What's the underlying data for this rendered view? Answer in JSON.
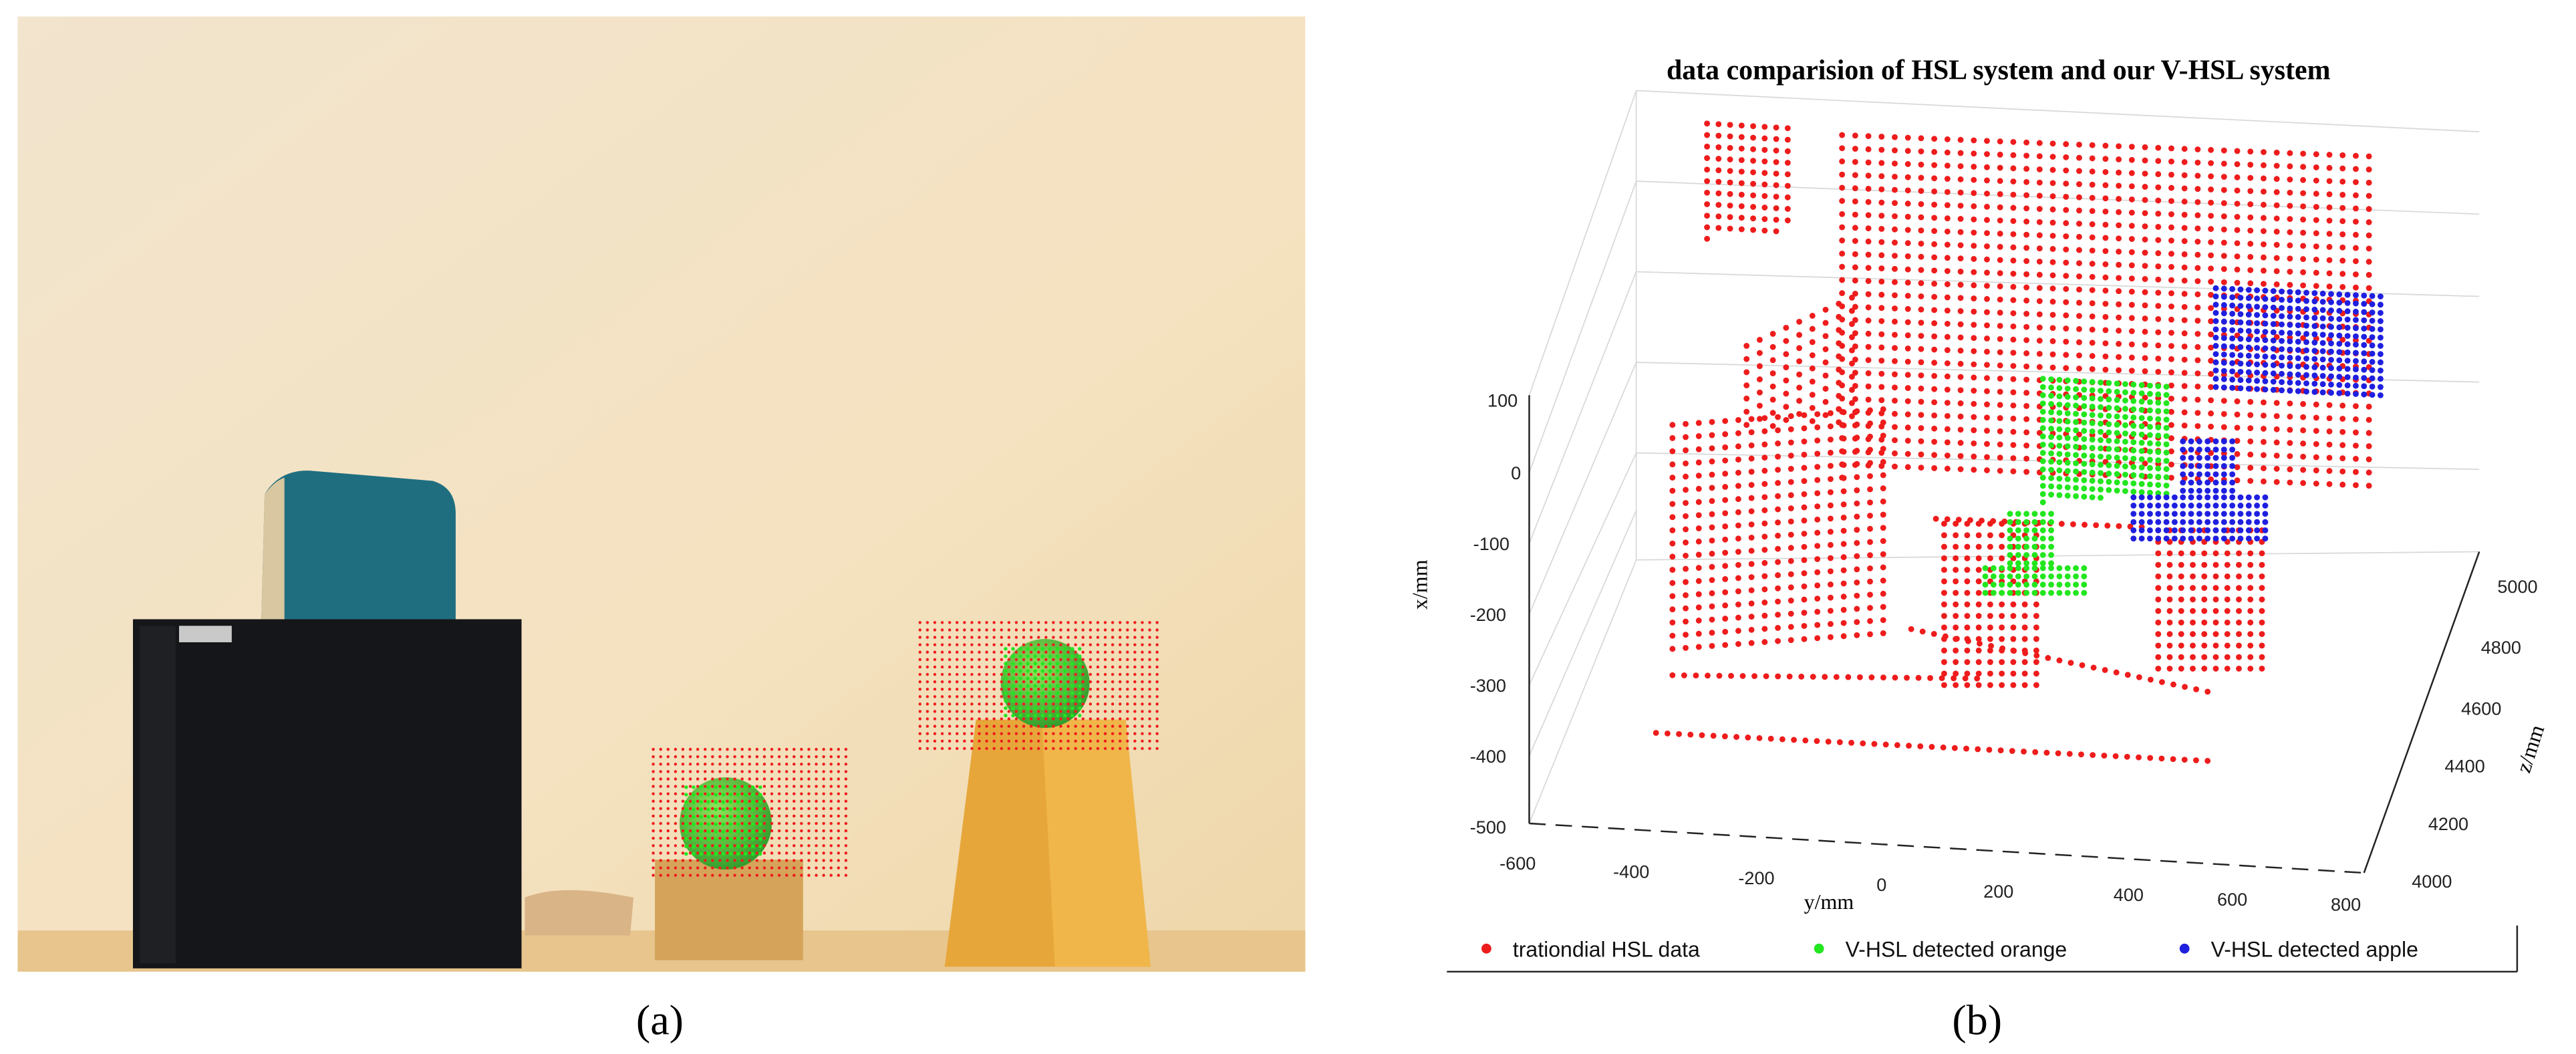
{
  "panels": [
    {
      "label": "(a)"
    },
    {
      "label": "(b)",
      "title": "data comparision of HSL system and our V-HSL system",
      "x_axis": {
        "label": "x/mm",
        "ticks": [
          "100",
          "0",
          "-100",
          "-200",
          "-300",
          "-400",
          "-500"
        ]
      },
      "y_axis": {
        "label": "y/mm",
        "ticks": [
          "-600",
          "-400",
          "-200",
          "0",
          "200",
          "400",
          "600",
          "800"
        ]
      },
      "z_axis": {
        "label": "z/mm",
        "ticks": [
          "5000",
          "4800",
          "4600",
          "4400",
          "4200",
          "4000"
        ]
      },
      "legend": [
        "trationdial HSL data",
        "V-HSL detected orange",
        "V-HSL detected apple"
      ]
    }
  ]
}
